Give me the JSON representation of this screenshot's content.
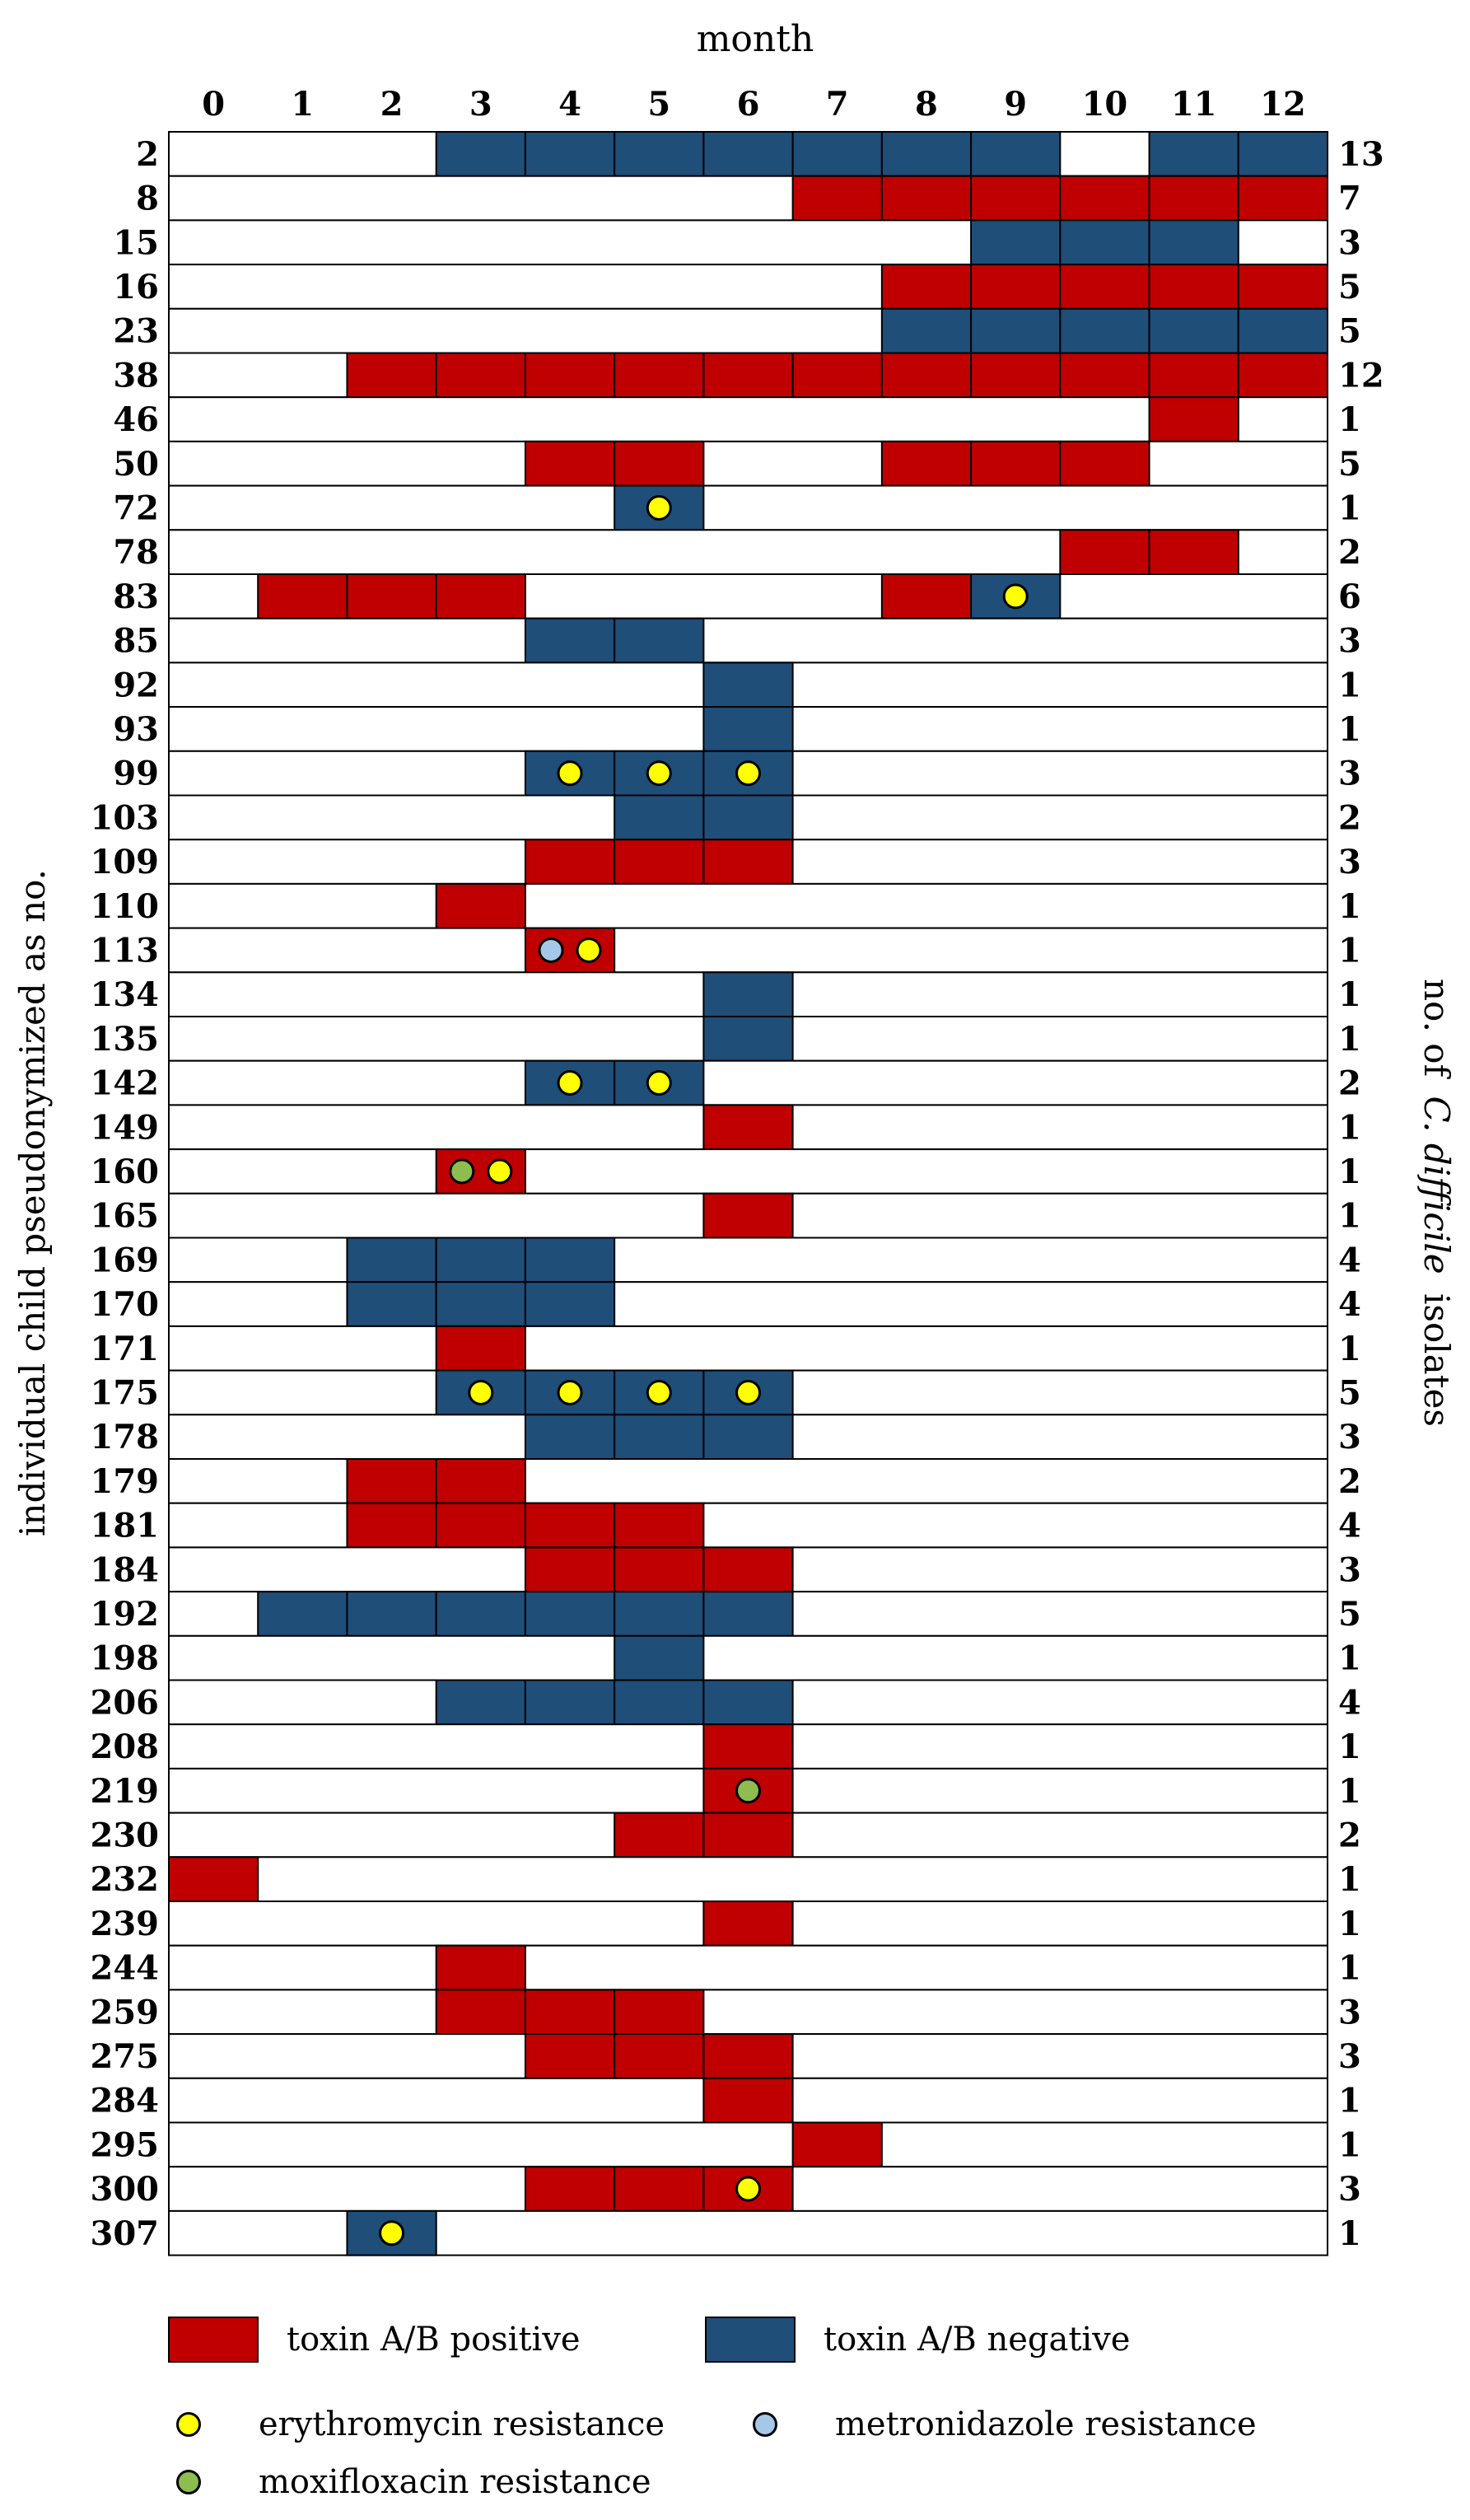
{
  "chart_data": {
    "type": "heatmap",
    "xlabel": "month",
    "ylabel": "individual child pseudonymized as no.",
    "right_label_prefix": "no. of",
    "right_label_italic": "C. difficile",
    "right_label_suffix": "isolates",
    "months": [
      "0",
      "1",
      "2",
      "3",
      "4",
      "5",
      "6",
      "7",
      "8",
      "9",
      "10",
      "11",
      "12"
    ],
    "colors": {
      "positive": "#c00000",
      "negative": "#1f4e79",
      "erythromycin": "#ffff00",
      "metronidazole": "#a6c8e8",
      "moxifloxacin": "#8fbc4f"
    },
    "rows": [
      {
        "id": "2",
        "count": "13",
        "cells": {
          "3": "N",
          "4": "N",
          "5": "N",
          "6": "N",
          "7": "N",
          "8": "N",
          "9": "N",
          "11": "N",
          "12": "N"
        }
      },
      {
        "id": "8",
        "count": "7",
        "cells": {
          "7": "P",
          "8": "P",
          "9": "P",
          "10": "P",
          "11": "P",
          "12": "P"
        }
      },
      {
        "id": "15",
        "count": "3",
        "cells": {
          "9": "N",
          "10": "N",
          "11": "N"
        }
      },
      {
        "id": "16",
        "count": "5",
        "cells": {
          "8": "P",
          "9": "P",
          "10": "P",
          "11": "P",
          "12": "P"
        }
      },
      {
        "id": "23",
        "count": "5",
        "cells": {
          "8": "N",
          "9": "N",
          "10": "N",
          "11": "N",
          "12": "N"
        }
      },
      {
        "id": "38",
        "count": "12",
        "cells": {
          "2": "P",
          "3": "P",
          "4": "P",
          "5": "P",
          "6": "P",
          "7": "P",
          "8": "P",
          "9": "P",
          "10": "P",
          "11": "P",
          "12": "P"
        }
      },
      {
        "id": "46",
        "count": "1",
        "cells": {
          "11": "P"
        }
      },
      {
        "id": "50",
        "count": "5",
        "cells": {
          "4": "P",
          "5": "P",
          "8": "P",
          "9": "P",
          "10": "P"
        }
      },
      {
        "id": "72",
        "count": "1",
        "cells": {
          "5": "N"
        },
        "dots": {
          "5": [
            "E"
          ]
        }
      },
      {
        "id": "78",
        "count": "2",
        "cells": {
          "10": "P",
          "11": "P"
        }
      },
      {
        "id": "83",
        "count": "6",
        "cells": {
          "1": "P",
          "2": "P",
          "3": "P",
          "8": "P",
          "9": "N"
        },
        "dots": {
          "9": [
            "E"
          ]
        }
      },
      {
        "id": "85",
        "count": "3",
        "cells": {
          "4": "N",
          "5": "N"
        }
      },
      {
        "id": "92",
        "count": "1",
        "cells": {
          "6": "N"
        }
      },
      {
        "id": "93",
        "count": "1",
        "cells": {
          "6": "N"
        }
      },
      {
        "id": "99",
        "count": "3",
        "cells": {
          "4": "N",
          "5": "N",
          "6": "N"
        },
        "dots": {
          "4": [
            "E"
          ],
          "5": [
            "E"
          ],
          "6": [
            "E"
          ]
        }
      },
      {
        "id": "103",
        "count": "2",
        "cells": {
          "5": "N",
          "6": "N"
        }
      },
      {
        "id": "109",
        "count": "3",
        "cells": {
          "4": "P",
          "5": "P",
          "6": "P"
        }
      },
      {
        "id": "110",
        "count": "1",
        "cells": {
          "3": "P"
        }
      },
      {
        "id": "113",
        "count": "1",
        "cells": {
          "4": "P"
        },
        "dots": {
          "4": [
            "M",
            "E"
          ]
        }
      },
      {
        "id": "134",
        "count": "1",
        "cells": {
          "6": "N"
        }
      },
      {
        "id": "135",
        "count": "1",
        "cells": {
          "6": "N"
        }
      },
      {
        "id": "142",
        "count": "2",
        "cells": {
          "4": "N",
          "5": "N"
        },
        "dots": {
          "4": [
            "E"
          ],
          "5": [
            "E"
          ]
        }
      },
      {
        "id": "149",
        "count": "1",
        "cells": {
          "6": "P"
        }
      },
      {
        "id": "160",
        "count": "1",
        "cells": {
          "3": "P"
        },
        "dots": {
          "3": [
            "X",
            "E"
          ]
        }
      },
      {
        "id": "165",
        "count": "1",
        "cells": {
          "6": "P"
        }
      },
      {
        "id": "169",
        "count": "4",
        "cells": {
          "2": "N",
          "3": "N",
          "4": "N"
        }
      },
      {
        "id": "170",
        "count": "4",
        "cells": {
          "2": "N",
          "3": "N",
          "4": "N"
        }
      },
      {
        "id": "171",
        "count": "1",
        "cells": {
          "3": "P"
        }
      },
      {
        "id": "175",
        "count": "5",
        "cells": {
          "3": "N",
          "4": "N",
          "5": "N",
          "6": "N"
        },
        "dots": {
          "3": [
            "E"
          ],
          "4": [
            "E"
          ],
          "5": [
            "E"
          ],
          "6": [
            "E"
          ]
        }
      },
      {
        "id": "178",
        "count": "3",
        "cells": {
          "4": "N",
          "5": "N",
          "6": "N"
        }
      },
      {
        "id": "179",
        "count": "2",
        "cells": {
          "2": "P",
          "3": "P"
        }
      },
      {
        "id": "181",
        "count": "4",
        "cells": {
          "2": "P",
          "3": "P",
          "4": "P",
          "5": "P"
        }
      },
      {
        "id": "184",
        "count": "3",
        "cells": {
          "4": "P",
          "5": "P",
          "6": "P"
        }
      },
      {
        "id": "192",
        "count": "5",
        "cells": {
          "1": "N",
          "2": "N",
          "3": "N",
          "4": "N",
          "5": "N",
          "6": "N"
        }
      },
      {
        "id": "198",
        "count": "1",
        "cells": {
          "5": "N"
        }
      },
      {
        "id": "206",
        "count": "4",
        "cells": {
          "3": "N",
          "4": "N",
          "5": "N",
          "6": "N"
        }
      },
      {
        "id": "208",
        "count": "1",
        "cells": {
          "6": "P"
        }
      },
      {
        "id": "219",
        "count": "1",
        "cells": {
          "6": "P"
        },
        "dots": {
          "6": [
            "X"
          ]
        }
      },
      {
        "id": "230",
        "count": "2",
        "cells": {
          "5": "P",
          "6": "P"
        }
      },
      {
        "id": "232",
        "count": "1",
        "cells": {
          "0": "P"
        }
      },
      {
        "id": "239",
        "count": "1",
        "cells": {
          "6": "P"
        }
      },
      {
        "id": "244",
        "count": "1",
        "cells": {
          "3": "P"
        }
      },
      {
        "id": "259",
        "count": "3",
        "cells": {
          "3": "P",
          "4": "P",
          "5": "P"
        }
      },
      {
        "id": "275",
        "count": "3",
        "cells": {
          "4": "P",
          "5": "P",
          "6": "P"
        }
      },
      {
        "id": "284",
        "count": "1",
        "cells": {
          "6": "P"
        }
      },
      {
        "id": "295",
        "count": "1",
        "cells": {
          "7": "P"
        }
      },
      {
        "id": "300",
        "count": "3",
        "cells": {
          "4": "P",
          "5": "P",
          "6": "P"
        },
        "dots": {
          "6": [
            "E"
          ]
        }
      },
      {
        "id": "307",
        "count": "1",
        "cells": {
          "2": "N"
        },
        "dots": {
          "2": [
            "E"
          ]
        }
      }
    ]
  },
  "legend": {
    "positive": "toxin A/B positive",
    "negative": "toxin A/B negative",
    "erythromycin": "erythromycin resistance",
    "metronidazole": "metronidazole resistance",
    "moxifloxacin": "moxifloxacin resistance"
  }
}
